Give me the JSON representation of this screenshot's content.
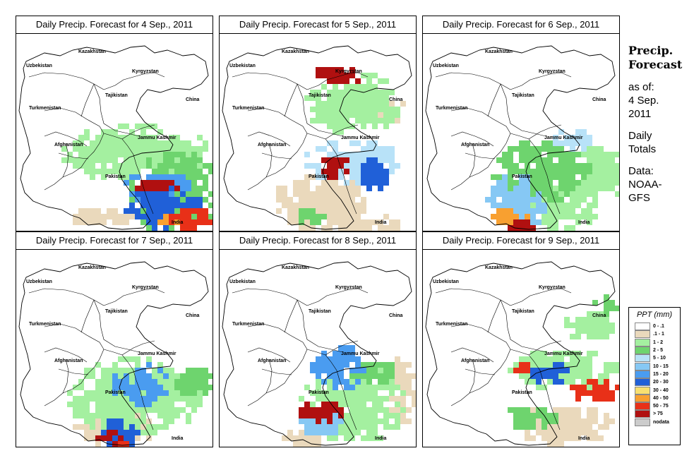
{
  "panels": [
    {
      "title": "Daily Precip. Forecast for  4 Sep., 2011"
    },
    {
      "title": "Daily Precip. Forecast for  5 Sep., 2011"
    },
    {
      "title": "Daily Precip. Forecast for  6 Sep., 2011"
    },
    {
      "title": "Daily Precip. Forecast for  7 Sep., 2011"
    },
    {
      "title": "Daily Precip. Forecast for  8 Sep., 2011"
    },
    {
      "title": "Daily Precip. Forecast for  9 Sep., 2011"
    }
  ],
  "map_labels": {
    "uzbekistan": "Uzbekistan",
    "kazakhstan": "Kazakhstan",
    "kyrgyzstan": "Kyrgyzstan",
    "tajikistan": "Tajikistan",
    "turkmenistan": "Turkmenistan",
    "china": "China",
    "afghanistan": "Afghanistan",
    "jammu_kashmir": "Jammu Kashmir",
    "pakistan": "Pakistan",
    "india": "India"
  },
  "side": {
    "title_line1": "Precip.",
    "title_line2": "Forecast",
    "asof_line1": "as of:",
    "asof_line2": "4 Sep.",
    "asof_line3": "2011",
    "daily_line1": "Daily",
    "daily_line2": "Totals",
    "data_line1": "Data:",
    "data_line2": "NOAA-",
    "data_line3": "GFS"
  },
  "legend": {
    "title": "PPT (mm)",
    "items": [
      {
        "label": "0 - .1",
        "color": "#ffffff"
      },
      {
        "label": ".1 - 1",
        "color": "#ead9bc"
      },
      {
        "label": "1 - 2",
        "color": "#a4f0a0"
      },
      {
        "label": "2 - 5",
        "color": "#6ed46e"
      },
      {
        "label": "5 - 10",
        "color": "#b8e2f8"
      },
      {
        "label": "10 - 15",
        "color": "#86c8f4"
      },
      {
        "label": "15 - 20",
        "color": "#4a9cf0"
      },
      {
        "label": "20 - 30",
        "color": "#2060d8"
      },
      {
        "label": "30 - 40",
        "color": "#f8e070"
      },
      {
        "label": "40 - 50",
        "color": "#f8a030"
      },
      {
        "label": "50 - 75",
        "color": "#e83018"
      },
      {
        "label": "> 75",
        "color": "#b01010"
      },
      {
        "label": "nodata",
        "color": "#cccccc"
      }
    ]
  }
}
